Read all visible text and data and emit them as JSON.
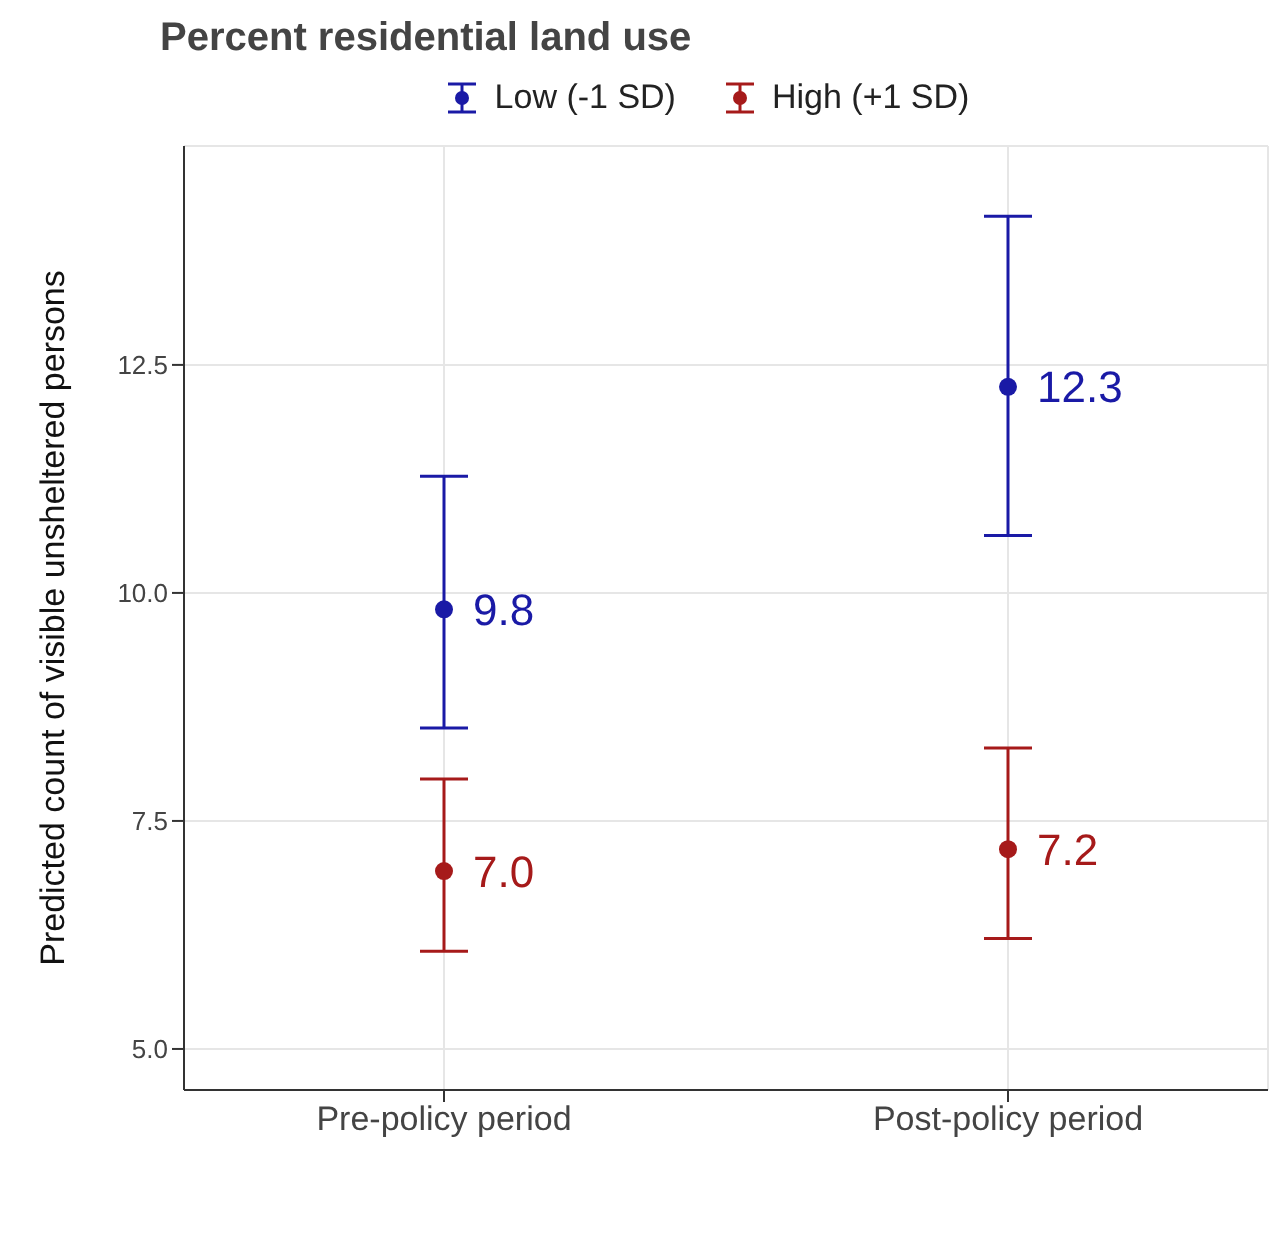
{
  "chart_data": {
    "type": "scatter",
    "title": "Percent residential land use",
    "ylabel": "Predicted count of visible unsheltered persons",
    "categories": [
      "Pre-policy period",
      "Post-policy period"
    ],
    "series": [
      {
        "name": "Low (-1 SD)",
        "color": "#1a1aa6",
        "values": [
          9.82,
          12.26
        ],
        "errors": [
          [
            8.52,
            11.28
          ],
          [
            10.63,
            14.13
          ]
        ],
        "value_labels": [
          "9.8",
          "12.3"
        ]
      },
      {
        "name": "High (+1 SD)",
        "color": "#a61a1a",
        "values": [
          6.95,
          7.19
        ],
        "errors": [
          [
            6.07,
            7.96
          ],
          [
            6.21,
            8.3
          ]
        ],
        "value_labels": [
          "7.0",
          "7.2"
        ]
      }
    ],
    "ylim": [
      4.55,
      14.9
    ],
    "yticks": [
      {
        "value": 5,
        "label": "5.0"
      },
      {
        "value": 7.5,
        "label": "7.5"
      },
      {
        "value": 10,
        "label": "10.0"
      },
      {
        "value": 12.5,
        "label": "12.5"
      }
    ],
    "grid": true,
    "legend": "top",
    "marker": "circle"
  }
}
